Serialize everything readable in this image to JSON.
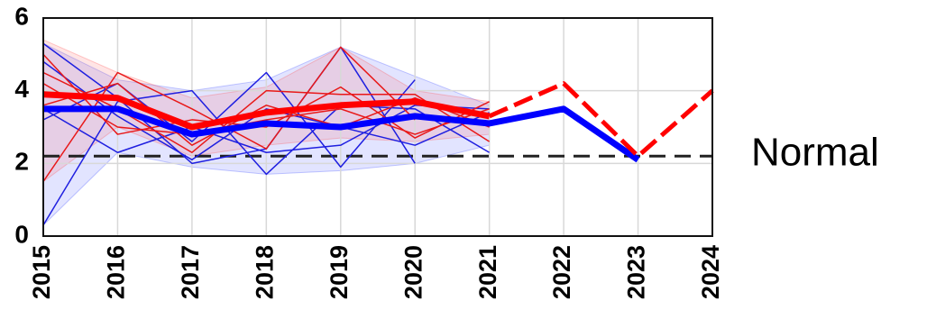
{
  "chart_data": {
    "type": "line",
    "x": [
      "2015",
      "2016",
      "2017",
      "2018",
      "2019",
      "2020",
      "2021",
      "2022",
      "2023",
      "2024"
    ],
    "ylim": [
      0,
      6
    ],
    "yticks": [
      0,
      2,
      4,
      6
    ],
    "grid": true,
    "reference_line": {
      "value": 2.2,
      "color": "#222222",
      "style": "dashed"
    },
    "annotation": "Normal",
    "bands": [
      {
        "color": "#3a4cff",
        "upper": [
          5.3,
          4.3,
          4.0,
          4.3,
          5.2,
          4.4,
          3.6,
          null,
          null,
          null
        ],
        "lower": [
          0.3,
          2.3,
          1.9,
          1.7,
          1.8,
          2.0,
          2.5,
          null,
          null,
          null
        ]
      },
      {
        "color": "#ff5050",
        "upper": [
          5.4,
          4.5,
          3.8,
          4.1,
          5.2,
          4.0,
          3.7,
          null,
          null,
          null
        ],
        "lower": [
          1.5,
          3.0,
          2.2,
          2.5,
          2.7,
          2.6,
          2.8,
          null,
          null,
          null
        ]
      }
    ],
    "series": [
      {
        "color": "#1f1fe0",
        "width": 1.5,
        "style": "solid",
        "values": [
          5.3,
          3.8,
          2.0,
          2.4,
          5.2,
          2.0,
          null,
          null,
          null,
          null
        ]
      },
      {
        "color": "#1f1fe0",
        "width": 1.5,
        "style": "solid",
        "values": [
          3.2,
          4.2,
          2.6,
          4.5,
          1.9,
          4.3,
          null,
          null,
          null,
          null
        ]
      },
      {
        "color": "#1f1fe0",
        "width": 1.5,
        "style": "solid",
        "values": [
          0.3,
          3.7,
          4.0,
          1.7,
          3.6,
          3.5,
          2.3,
          null,
          null,
          null
        ]
      },
      {
        "color": "#1f1fe0",
        "width": 1.5,
        "style": "solid",
        "values": [
          3.5,
          2.3,
          3.0,
          2.3,
          2.5,
          3.6,
          3.5,
          null,
          null,
          null
        ]
      },
      {
        "color": "#1f1fe0",
        "width": 1.5,
        "style": "solid",
        "values": [
          4.8,
          3.3,
          2.1,
          3.5,
          3.0,
          2.5,
          3.4,
          null,
          null,
          null
        ]
      },
      {
        "color": "#e81818",
        "width": 1.5,
        "style": "solid",
        "values": [
          1.5,
          4.5,
          3.5,
          2.4,
          5.2,
          3.2,
          null,
          null,
          null,
          null
        ]
      },
      {
        "color": "#e81818",
        "width": 1.5,
        "style": "solid",
        "values": [
          4.5,
          3.5,
          2.3,
          4.0,
          3.9,
          3.9,
          2.6,
          null,
          null,
          null
        ]
      },
      {
        "color": "#e81818",
        "width": 1.5,
        "style": "solid",
        "values": [
          5.0,
          2.8,
          3.2,
          3.0,
          4.1,
          2.7,
          3.7,
          null,
          null,
          null
        ]
      },
      {
        "color": "#e81818",
        "width": 1.5,
        "style": "solid",
        "values": [
          3.6,
          4.2,
          2.5,
          3.6,
          3.0,
          3.8,
          3.0,
          null,
          null,
          null
        ]
      },
      {
        "color": "#e81818",
        "width": 1.5,
        "style": "solid",
        "values": [
          4.2,
          3.0,
          2.8,
          3.2,
          3.5,
          2.8,
          3.5,
          null,
          null,
          null
        ]
      },
      {
        "color": "#0000ff",
        "width": 7,
        "style": "solid",
        "values": [
          3.5,
          3.5,
          2.8,
          3.1,
          3.0,
          3.3,
          3.1,
          3.5,
          2.1,
          null
        ]
      },
      {
        "color": "#ff0000",
        "width": 7,
        "style": "solid",
        "values": [
          3.9,
          3.8,
          3.0,
          3.4,
          3.6,
          3.7,
          3.3,
          null,
          null,
          null
        ]
      },
      {
        "color": "#ff0000",
        "width": 5,
        "style": "dashed",
        "values": [
          null,
          null,
          null,
          null,
          null,
          null,
          3.3,
          4.2,
          2.2,
          4.0
        ]
      }
    ]
  }
}
